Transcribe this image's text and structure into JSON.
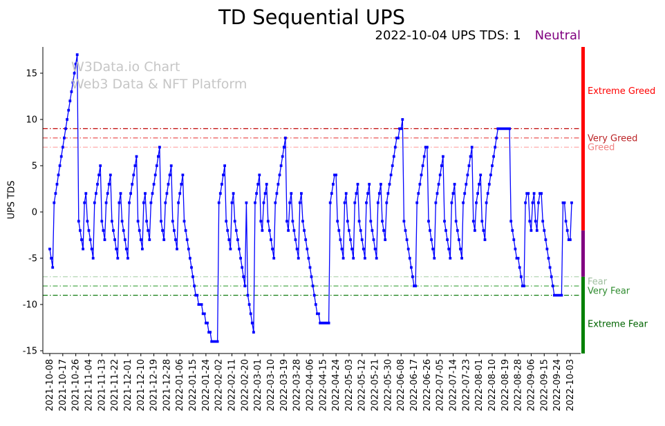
{
  "header": {
    "title": "TD Sequential UPS",
    "subtitle": "2022-10-04 UPS TDS: 1",
    "status": "Neutral",
    "status_style": "color:#800080"
  },
  "watermark": {
    "line1": "W3Data.io Chart",
    "line2": "Web3 Data & NFT Platform"
  },
  "chart_data": {
    "type": "line",
    "title": "TD Sequential UPS",
    "xlabel": "",
    "ylabel": "UPS TDS",
    "ylim": [
      -15.3,
      17.9
    ],
    "yticks": [
      -15,
      -10,
      -5,
      0,
      5,
      10,
      15
    ],
    "x_frequency": "daily",
    "x_start_date": "2021-10-08",
    "x_end_date": "2022-10-04",
    "x_tick_step_days": 9,
    "x_tick_labels": [
      "2021-10-08",
      "2021-10-17",
      "2021-10-26",
      "2021-11-04",
      "2021-11-13",
      "2021-11-22",
      "2021-12-01",
      "2021-12-10",
      "2021-12-19",
      "2021-12-28",
      "2022-01-06",
      "2022-01-15",
      "2022-01-24",
      "2022-02-02",
      "2022-02-11",
      "2022-02-20",
      "2022-03-01",
      "2022-03-10",
      "2022-03-19",
      "2022-03-28",
      "2022-04-06",
      "2022-04-15",
      "2022-04-24",
      "2022-05-03",
      "2022-05-12",
      "2022-05-21",
      "2022-05-30",
      "2022-06-08",
      "2022-06-17",
      "2022-06-26",
      "2022-07-05",
      "2022-07-14",
      "2022-07-23",
      "2022-08-01",
      "2022-08-10",
      "2022-08-19",
      "2022-08-28",
      "2022-09-06",
      "2022-09-15",
      "2022-09-24",
      "2022-10-03"
    ],
    "grid": false,
    "legend": "none",
    "series": [
      {
        "name": "UPS TDS",
        "color": "#0000ff",
        "marker": "square",
        "values": [
          -4,
          -5,
          -6,
          1,
          2,
          3,
          4,
          5,
          6,
          7,
          8,
          9,
          10,
          11,
          12,
          13,
          14,
          15,
          16,
          17,
          -1,
          -2,
          -3,
          -4,
          1,
          2,
          -1,
          -2,
          -3,
          -4,
          -5,
          1,
          2,
          3,
          4,
          5,
          -1,
          -2,
          -3,
          1,
          2,
          3,
          4,
          -1,
          -2,
          -3,
          -4,
          -5,
          1,
          2,
          -1,
          -2,
          -3,
          -4,
          -5,
          1,
          2,
          3,
          4,
          5,
          6,
          -1,
          -2,
          -3,
          -4,
          1,
          2,
          -1,
          -2,
          -3,
          1,
          2,
          3,
          4,
          5,
          6,
          7,
          -1,
          -2,
          -3,
          1,
          2,
          3,
          4,
          5,
          -1,
          -2,
          -3,
          -4,
          1,
          2,
          3,
          4,
          -1,
          -2,
          -3,
          -4,
          -5,
          -6,
          -7,
          -8,
          -9,
          -9,
          -10,
          -10,
          -10,
          -11,
          -11,
          -12,
          -12,
          -13,
          -13,
          -14,
          -14,
          -14,
          -14,
          -14,
          1,
          2,
          3,
          4,
          5,
          -1,
          -2,
          -3,
          -4,
          1,
          2,
          -1,
          -2,
          -3,
          -4,
          -5,
          -6,
          -7,
          -8,
          1,
          -9,
          -10,
          -11,
          -12,
          -13,
          1,
          2,
          3,
          4,
          -1,
          -2,
          1,
          2,
          3,
          -1,
          -2,
          -3,
          -4,
          -5,
          1,
          2,
          3,
          4,
          5,
          6,
          7,
          8,
          -1,
          -2,
          1,
          2,
          -1,
          -2,
          -3,
          -4,
          -5,
          1,
          2,
          -1,
          -2,
          -3,
          -4,
          -5,
          -6,
          -7,
          -8,
          -9,
          -10,
          -11,
          -11,
          -12,
          -12,
          -12,
          -12,
          -12,
          -12,
          -12,
          1,
          2,
          3,
          4,
          4,
          -1,
          -2,
          -3,
          -4,
          -5,
          1,
          2,
          -1,
          -2,
          -3,
          -4,
          -5,
          1,
          2,
          3,
          -1,
          -2,
          -3,
          -4,
          -5,
          1,
          2,
          3,
          -1,
          -2,
          -3,
          -4,
          -5,
          1,
          2,
          3,
          -1,
          -2,
          -3,
          1,
          2,
          3,
          4,
          5,
          6,
          7,
          8,
          8,
          9,
          9,
          10,
          -1,
          -2,
          -3,
          -4,
          -5,
          -6,
          -7,
          -8,
          -8,
          1,
          2,
          3,
          4,
          5,
          6,
          7,
          7,
          -1,
          -2,
          -3,
          -4,
          -5,
          1,
          2,
          3,
          4,
          5,
          6,
          -1,
          -2,
          -3,
          -4,
          -5,
          1,
          2,
          3,
          -1,
          -2,
          -3,
          -4,
          -5,
          1,
          2,
          3,
          4,
          5,
          6,
          7,
          -1,
          -2,
          1,
          2,
          3,
          4,
          -1,
          -2,
          -3,
          1,
          2,
          3,
          4,
          5,
          6,
          7,
          8,
          9,
          9,
          9,
          9,
          9,
          9,
          9,
          9,
          9,
          -1,
          -2,
          -3,
          -4,
          -5,
          -5,
          -6,
          -7,
          -8,
          -8,
          1,
          2,
          2,
          -1,
          -2,
          1,
          2,
          -1,
          -2,
          1,
          2,
          2,
          -1,
          -2,
          -3,
          -4,
          -5,
          -6,
          -7,
          -8,
          -9,
          -9,
          -9,
          -9,
          -9,
          -9,
          1,
          1,
          -1,
          -2,
          -3,
          -3,
          1
        ]
      }
    ],
    "threshold_lines": [
      {
        "value": 9,
        "color": "#c00000",
        "style": "dash-dot"
      },
      {
        "value": 8,
        "color": "#e84040",
        "style": "dash-dot"
      },
      {
        "value": 7,
        "color": "#ffa0a0",
        "style": "dash-dot"
      },
      {
        "value": -7,
        "color": "#a8cfa8",
        "style": "dash-dot"
      },
      {
        "value": -8,
        "color": "#3aa03a",
        "style": "dash-dot"
      },
      {
        "value": -9,
        "color": "#0c7a0c",
        "style": "dash-dot"
      }
    ],
    "zone_labels": [
      {
        "text": "Extreme Greed",
        "color": "#ff0000",
        "value": 13.1
      },
      {
        "text": "Very Greed",
        "color": "#bb2124",
        "value": 8.0
      },
      {
        "text": "Greed",
        "color": "#f08080",
        "value": 7.0
      },
      {
        "text": "Fear",
        "color": "#9fbf9f",
        "value": -7.5
      },
      {
        "text": "Very Fear",
        "color": "#2e8b2e",
        "value": -8.5
      },
      {
        "text": "Extreme Fear",
        "color": "#006400",
        "value": -12.1
      }
    ],
    "right_bar_segments": [
      {
        "color": "#ff0000",
        "from": 17.9,
        "to": -2.0
      },
      {
        "color": "#800080",
        "from": -2.0,
        "to": -7.0
      },
      {
        "color": "#008000",
        "from": -7.0,
        "to": -15.3
      }
    ],
    "latest": {
      "date": "2022-10-04",
      "value": 1,
      "sentiment": "Neutral"
    }
  }
}
